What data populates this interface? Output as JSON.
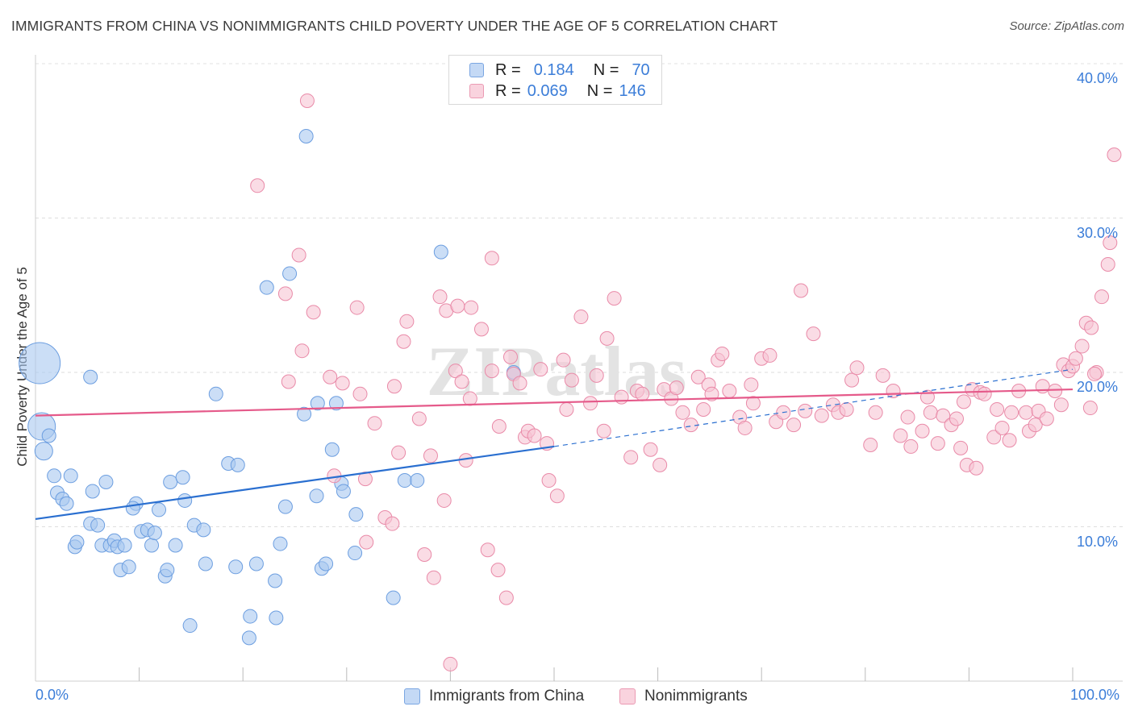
{
  "header": {
    "title": "IMMIGRANTS FROM CHINA VS NONIMMIGRANTS CHILD POVERTY UNDER THE AGE OF 5 CORRELATION CHART",
    "source": "Source: ZipAtlas.com"
  },
  "watermark": "ZIPatlas",
  "legend": {
    "rows": [
      {
        "r_label": "R =",
        "r_value": "0.184",
        "n_label": "N =",
        "n_value": "70",
        "color": "#a9c8f0",
        "border": "#6c9ee0"
      },
      {
        "r_label": "R =",
        "r_value": "0.069",
        "n_label": "N =",
        "n_value": "146",
        "color": "#f7c5d4",
        "border": "#e98aa8"
      }
    ]
  },
  "bottom_legend": {
    "items": [
      {
        "label": "Immigrants from China",
        "color": "#c4d9f5",
        "border": "#7aa6e2"
      },
      {
        "label": "Nonimmigrants",
        "color": "#f9d3de",
        "border": "#eb9ab3"
      }
    ]
  },
  "chart_data": {
    "type": "scatter",
    "title": "IMMIGRANTS FROM CHINA VS NONIMMIGRANTS CHILD POVERTY UNDER THE AGE OF 5 CORRELATION CHART",
    "xlabel": "",
    "ylabel": "Child Poverty Under the Age of 5",
    "xlim": [
      0,
      100
    ],
    "ylim": [
      0,
      40
    ],
    "x_tick_labels": [
      "0.0%",
      "100.0%"
    ],
    "y_ticks": [
      10,
      20,
      30,
      40
    ],
    "y_tick_labels": [
      "10.0%",
      "20.0%",
      "30.0%",
      "40.0%"
    ],
    "grid": true,
    "legend_position": "top-center",
    "series": [
      {
        "name": "Immigrants from China",
        "color": "#a9c8f0",
        "stroke": "#6c9ee0",
        "trend": {
          "x": [
            0,
            50
          ],
          "y": [
            10.5,
            15.2
          ],
          "dashed_extension": {
            "x": [
              50,
              100
            ],
            "y": [
              15.2,
              20.2
            ]
          },
          "color": "#2a6fd0"
        },
        "points": [
          [
            0.4,
            20.6,
            3
          ],
          [
            0.6,
            16.5,
            2
          ],
          [
            0.8,
            14.9,
            1.3
          ],
          [
            1.3,
            15.9,
            1
          ],
          [
            1.8,
            13.3,
            1
          ],
          [
            2.1,
            12.2,
            1
          ],
          [
            2.6,
            11.8,
            1
          ],
          [
            3.0,
            11.5,
            1
          ],
          [
            3.4,
            13.3,
            1
          ],
          [
            3.8,
            8.7,
            1
          ],
          [
            4.0,
            9.0,
            1
          ],
          [
            5.3,
            19.7,
            1
          ],
          [
            5.3,
            10.2,
            1
          ],
          [
            5.5,
            12.3,
            1
          ],
          [
            6.0,
            10.1,
            1
          ],
          [
            6.4,
            8.8,
            1
          ],
          [
            6.8,
            12.9,
            1
          ],
          [
            7.2,
            8.8,
            1
          ],
          [
            7.6,
            9.1,
            1
          ],
          [
            7.9,
            8.7,
            1
          ],
          [
            8.2,
            7.2,
            1
          ],
          [
            8.6,
            8.8,
            1
          ],
          [
            9.0,
            7.4,
            1
          ],
          [
            9.7,
            11.5,
            1
          ],
          [
            9.4,
            11.2,
            1
          ],
          [
            10.2,
            9.7,
            1
          ],
          [
            10.8,
            9.8,
            1
          ],
          [
            11.2,
            8.8,
            1
          ],
          [
            11.5,
            9.6,
            1
          ],
          [
            11.9,
            11.1,
            1
          ],
          [
            12.5,
            6.8,
            1
          ],
          [
            12.7,
            7.2,
            1
          ],
          [
            13.0,
            12.9,
            1
          ],
          [
            13.5,
            8.8,
            1
          ],
          [
            14.2,
            13.2,
            1
          ],
          [
            14.4,
            11.7,
            1
          ],
          [
            14.9,
            3.6,
            1
          ],
          [
            15.3,
            10.1,
            1
          ],
          [
            16.2,
            9.8,
            1
          ],
          [
            16.4,
            7.6,
            1
          ],
          [
            17.4,
            18.6,
            1
          ],
          [
            18.6,
            14.1,
            1
          ],
          [
            19.3,
            7.4,
            1
          ],
          [
            19.5,
            14.0,
            1
          ],
          [
            20.6,
            2.8,
            1
          ],
          [
            20.7,
            4.2,
            1
          ],
          [
            21.3,
            7.6,
            1
          ],
          [
            22.3,
            25.5,
            1
          ],
          [
            23.1,
            6.5,
            1
          ],
          [
            23.2,
            4.1,
            1
          ],
          [
            23.6,
            8.9,
            1
          ],
          [
            24.1,
            11.3,
            1
          ],
          [
            24.5,
            26.4,
            1
          ],
          [
            26.1,
            35.3,
            1
          ],
          [
            25.9,
            17.3,
            1
          ],
          [
            27.2,
            18.0,
            1
          ],
          [
            27.1,
            12.0,
            1
          ],
          [
            27.6,
            7.3,
            1
          ],
          [
            28.0,
            7.6,
            1
          ],
          [
            28.6,
            15.0,
            1
          ],
          [
            29.0,
            18.0,
            1
          ],
          [
            29.5,
            12.8,
            1
          ],
          [
            29.7,
            12.3,
            1
          ],
          [
            30.9,
            10.8,
            1
          ],
          [
            30.8,
            8.3,
            1
          ],
          [
            34.5,
            5.4,
            1
          ],
          [
            35.6,
            13.0,
            1
          ],
          [
            36.8,
            13.0,
            1
          ],
          [
            39.1,
            27.8,
            1
          ],
          [
            46.1,
            20.0,
            1
          ]
        ]
      },
      {
        "name": "Nonimmigrants",
        "color": "#f7c5d4",
        "stroke": "#e98aa8",
        "trend": {
          "x": [
            0,
            100
          ],
          "y": [
            17.2,
            18.9
          ],
          "color": "#e55a8a"
        },
        "points": [
          [
            21.4,
            32.1
          ],
          [
            24.1,
            25.1
          ],
          [
            25.4,
            27.6
          ],
          [
            25.7,
            21.4
          ],
          [
            26.2,
            37.6
          ],
          [
            24.4,
            19.4
          ],
          [
            26.8,
            23.9
          ],
          [
            28.4,
            19.7
          ],
          [
            28.8,
            13.3
          ],
          [
            29.6,
            19.3
          ],
          [
            31.0,
            24.2
          ],
          [
            31.3,
            18.6
          ],
          [
            31.8,
            13.1
          ],
          [
            31.9,
            9.0
          ],
          [
            32.7,
            16.7
          ],
          [
            33.7,
            10.6
          ],
          [
            34.4,
            10.2
          ],
          [
            34.6,
            19.1
          ],
          [
            35.0,
            14.8
          ],
          [
            35.5,
            22.0
          ],
          [
            35.8,
            23.3
          ],
          [
            37.0,
            17.0
          ],
          [
            37.5,
            8.2
          ],
          [
            38.1,
            14.6
          ],
          [
            38.4,
            6.7
          ],
          [
            39.0,
            24.9
          ],
          [
            39.4,
            11.7
          ],
          [
            39.6,
            24.0
          ],
          [
            40.0,
            1.1
          ],
          [
            40.5,
            20.1
          ],
          [
            40.7,
            24.3
          ],
          [
            41.1,
            19.4
          ],
          [
            41.5,
            14.3
          ],
          [
            41.9,
            18.3
          ],
          [
            42.0,
            24.2
          ],
          [
            43.0,
            22.8
          ],
          [
            43.6,
            8.5
          ],
          [
            44.0,
            27.4
          ],
          [
            44.0,
            20.1
          ],
          [
            44.6,
            7.2
          ],
          [
            44.7,
            16.5
          ],
          [
            45.4,
            5.4
          ],
          [
            45.8,
            21.0
          ],
          [
            46.1,
            19.9
          ],
          [
            46.7,
            19.3
          ],
          [
            47.2,
            15.8
          ],
          [
            47.5,
            16.2
          ],
          [
            48.1,
            15.9
          ],
          [
            48.7,
            20.2
          ],
          [
            49.3,
            15.4
          ],
          [
            49.5,
            13.0
          ],
          [
            50.3,
            12.0
          ],
          [
            50.9,
            20.8
          ],
          [
            51.2,
            17.6
          ],
          [
            51.7,
            19.5
          ],
          [
            52.6,
            23.6
          ],
          [
            53.5,
            18.0
          ],
          [
            54.1,
            19.8
          ],
          [
            54.8,
            16.2
          ],
          [
            55.1,
            22.2
          ],
          [
            55.8,
            24.8
          ],
          [
            56.5,
            18.4
          ],
          [
            57.4,
            14.5
          ],
          [
            58.0,
            18.8
          ],
          [
            58.5,
            18.6
          ],
          [
            59.3,
            15.0
          ],
          [
            60.2,
            14.0
          ],
          [
            60.6,
            18.9
          ],
          [
            61.3,
            18.3
          ],
          [
            61.8,
            19.0
          ],
          [
            62.4,
            17.4
          ],
          [
            63.2,
            16.6
          ],
          [
            63.9,
            19.7
          ],
          [
            64.4,
            17.6
          ],
          [
            64.9,
            19.2
          ],
          [
            65.2,
            18.6
          ],
          [
            65.8,
            20.8
          ],
          [
            66.2,
            21.2
          ],
          [
            66.9,
            18.8
          ],
          [
            67.9,
            17.1
          ],
          [
            68.4,
            16.4
          ],
          [
            69.0,
            19.2
          ],
          [
            69.2,
            18.0
          ],
          [
            70.0,
            20.9
          ],
          [
            70.8,
            21.1
          ],
          [
            71.4,
            16.8
          ],
          [
            72.1,
            17.4
          ],
          [
            73.1,
            16.6
          ],
          [
            73.8,
            25.3
          ],
          [
            74.2,
            17.5
          ],
          [
            75.0,
            22.5
          ],
          [
            75.8,
            17.2
          ],
          [
            76.9,
            17.9
          ],
          [
            77.4,
            17.4
          ],
          [
            78.2,
            17.6
          ],
          [
            78.7,
            19.5
          ],
          [
            79.2,
            20.3
          ],
          [
            80.5,
            15.3
          ],
          [
            81.0,
            17.4
          ],
          [
            81.7,
            19.8
          ],
          [
            82.7,
            18.8
          ],
          [
            83.4,
            15.9
          ],
          [
            84.1,
            17.1
          ],
          [
            84.4,
            15.2
          ],
          [
            85.5,
            16.2
          ],
          [
            86.0,
            18.4
          ],
          [
            86.3,
            17.4
          ],
          [
            87.0,
            15.4
          ],
          [
            87.5,
            17.2
          ],
          [
            88.3,
            16.6
          ],
          [
            88.8,
            17.0
          ],
          [
            89.2,
            15.1
          ],
          [
            89.5,
            18.1
          ],
          [
            90.3,
            18.9
          ],
          [
            89.8,
            14.0
          ],
          [
            90.7,
            13.8
          ],
          [
            91.1,
            18.7
          ],
          [
            91.5,
            18.6
          ],
          [
            92.4,
            15.8
          ],
          [
            92.7,
            17.6
          ],
          [
            93.2,
            16.4
          ],
          [
            93.9,
            15.6
          ],
          [
            94.1,
            17.4
          ],
          [
            94.8,
            18.8
          ],
          [
            95.5,
            17.4
          ],
          [
            95.8,
            16.2
          ],
          [
            96.4,
            16.6
          ],
          [
            96.7,
            17.5
          ],
          [
            97.1,
            19.1
          ],
          [
            97.5,
            17.0
          ],
          [
            98.3,
            18.8
          ],
          [
            98.9,
            17.9
          ],
          [
            99.1,
            20.5
          ],
          [
            99.6,
            20.1
          ],
          [
            100.0,
            20.4
          ],
          [
            100.3,
            20.9
          ],
          [
            100.9,
            21.7
          ],
          [
            101.3,
            23.2
          ],
          [
            101.8,
            22.9
          ],
          [
            102.3,
            20.0
          ],
          [
            102.8,
            24.9
          ],
          [
            103.4,
            27.0
          ],
          [
            103.6,
            28.4
          ],
          [
            104.0,
            34.1
          ],
          [
            102.1,
            19.9
          ],
          [
            101.7,
            17.7
          ]
        ]
      }
    ]
  }
}
